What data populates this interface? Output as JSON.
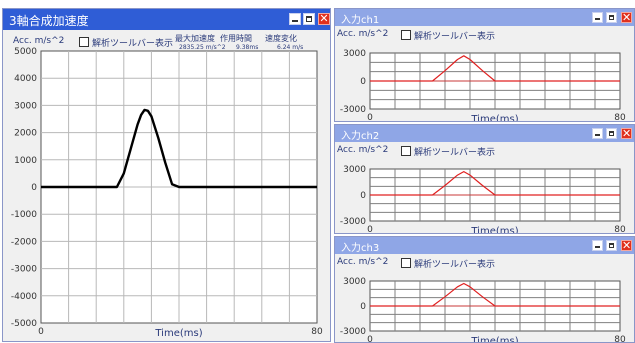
{
  "main": {
    "title": "3軸合成加速度",
    "unit_label": "Acc. m/s^2",
    "toolbar_checkbox_label": "解析ツールバー表示",
    "stats": {
      "max_accel_header": "最大加速度",
      "duration_header": "作用時間",
      "speed_change_header": "速度変化",
      "max_accel_value": "2835.25 m/s^2",
      "duration_value": "9.38ms",
      "speed_change_value": "6.24 m/s"
    },
    "xlabel": "Time(ms)"
  },
  "channels": [
    {
      "title": "入力ch1",
      "unit_label": "Acc. m/s^2",
      "toolbar_checkbox_label": "解析ツールバー表示",
      "xlabel": "Time(ms)"
    },
    {
      "title": "入力ch2",
      "unit_label": "Acc. m/s^2",
      "toolbar_checkbox_label": "解析ツールバー表示",
      "xlabel": "Time(ms)"
    },
    {
      "title": "入力ch3",
      "unit_label": "Acc. m/s^2",
      "toolbar_checkbox_label": "解析ツールバー表示",
      "xlabel": "Time(ms)"
    }
  ],
  "colors": {
    "title_active": "#2f5dd6",
    "title_inactive": "#8fa6e6",
    "main_curve": "#000000",
    "channel_curve": "#e02020",
    "grid": "#b8b8b8",
    "channel_grid": "#808080"
  },
  "chart_data": [
    {
      "type": "line",
      "title": "3軸合成加速度",
      "xlabel": "Time(ms)",
      "ylabel": "Acc. m/s^2",
      "xlim": [
        0,
        80
      ],
      "ylim": [
        -5000,
        5000
      ],
      "x_ticks": [
        "0",
        "80"
      ],
      "y_ticks": [
        "5000",
        "4000",
        "3000",
        "2000",
        "1000",
        "0",
        "-1000",
        "-2000",
        "-3000",
        "-4000",
        "-5000"
      ],
      "grid": true,
      "series": [
        {
          "x": [
            0,
            22,
            24,
            26,
            28,
            29,
            30,
            31,
            32,
            34,
            36,
            38,
            40,
            80
          ],
          "y": [
            0,
            0,
            500,
            1400,
            2300,
            2650,
            2835,
            2800,
            2600,
            1800,
            900,
            100,
            0,
            0
          ]
        }
      ]
    },
    {
      "type": "line",
      "title": "入力ch1",
      "xlabel": "Time(ms)",
      "ylabel": "Acc. m/s^2",
      "xlim": [
        0,
        80
      ],
      "ylim": [
        -3000,
        3000
      ],
      "x_ticks": [
        "0",
        "80"
      ],
      "y_ticks": [
        "3000",
        "0",
        "-3000"
      ],
      "grid": true,
      "series": [
        {
          "x": [
            0,
            20,
            24,
            28,
            30,
            32,
            36,
            40,
            80
          ],
          "y": [
            0,
            0,
            1100,
            2300,
            2700,
            2300,
            1100,
            0,
            0
          ]
        }
      ]
    },
    {
      "type": "line",
      "title": "入力ch2",
      "xlabel": "Time(ms)",
      "ylabel": "Acc. m/s^2",
      "xlim": [
        0,
        80
      ],
      "ylim": [
        -3000,
        3000
      ],
      "x_ticks": [
        "0",
        "80"
      ],
      "y_ticks": [
        "3000",
        "0",
        "-3000"
      ],
      "grid": true,
      "series": [
        {
          "x": [
            0,
            20,
            24,
            28,
            30,
            32,
            36,
            40,
            80
          ],
          "y": [
            0,
            0,
            1100,
            2300,
            2700,
            2300,
            1100,
            0,
            0
          ]
        }
      ]
    },
    {
      "type": "line",
      "title": "入力ch3",
      "xlabel": "Time(ms)",
      "ylabel": "Acc. m/s^2",
      "xlim": [
        0,
        80
      ],
      "ylim": [
        -3000,
        3000
      ],
      "x_ticks": [
        "0",
        "80"
      ],
      "y_ticks": [
        "3000",
        "0",
        "-3000"
      ],
      "grid": true,
      "series": [
        {
          "x": [
            0,
            20,
            24,
            28,
            30,
            32,
            36,
            40,
            80
          ],
          "y": [
            0,
            0,
            1100,
            2300,
            2700,
            2300,
            1100,
            0,
            0
          ]
        }
      ]
    }
  ]
}
